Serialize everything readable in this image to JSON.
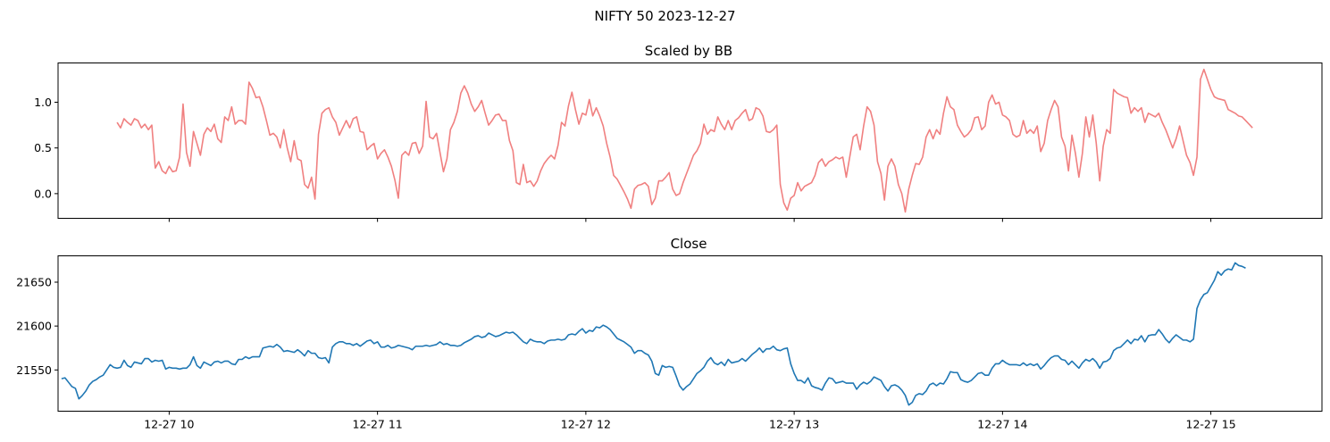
{
  "figure": {
    "title": "NIFTY 50 2023-12-27"
  },
  "chart_data": [
    {
      "type": "line",
      "title": "Scaled by BB",
      "xlabel": "",
      "ylabel": "",
      "color": "#f08080",
      "xlim": [
        "09:28",
        "15:32"
      ],
      "ylim": [
        -0.27,
        1.43
      ],
      "yticks": [
        0.0,
        0.5,
        1.0
      ],
      "ytick_labels": [
        "0.0",
        "0.5",
        "1.0"
      ],
      "xticks": [
        "10:00",
        "11:00",
        "12:00",
        "13:00",
        "14:00",
        "15:00"
      ],
      "xtick_labels_shown": false,
      "grid": false,
      "series": [
        {
          "x_start": "09:45",
          "x_step_minutes": 1,
          "values": [
            0.78,
            0.72,
            0.82,
            0.78,
            0.75,
            0.82,
            0.8,
            0.72,
            0.76,
            0.7,
            0.75,
            0.28,
            0.35,
            0.25,
            0.22,
            0.3,
            0.24,
            0.25,
            0.4,
            0.98,
            0.45,
            0.3,
            0.68,
            0.55,
            0.42,
            0.65,
            0.72,
            0.68,
            0.76,
            0.6,
            0.56,
            0.84,
            0.8,
            0.95,
            0.76,
            0.8,
            0.8,
            0.76,
            1.22,
            1.15,
            1.05,
            1.06,
            0.95,
            0.8,
            0.64,
            0.66,
            0.62,
            0.5,
            0.7,
            0.5,
            0.35,
            0.58,
            0.38,
            0.36,
            0.1,
            0.06,
            0.18,
            -0.06,
            0.65,
            0.88,
            0.92,
            0.94,
            0.84,
            0.78,
            0.64,
            0.72,
            0.8,
            0.72,
            0.82,
            0.84,
            0.68,
            0.67,
            0.48,
            0.52,
            0.55,
            0.38,
            0.44,
            0.48,
            0.4,
            0.3,
            0.15,
            -0.05,
            0.42,
            0.46,
            0.42,
            0.55,
            0.56,
            0.44,
            0.52,
            1.01,
            0.62,
            0.6,
            0.66,
            0.45,
            0.24,
            0.38,
            0.7,
            0.78,
            0.9,
            1.1,
            1.18,
            1.1,
            0.98,
            0.9,
            0.95,
            1.02,
            0.88,
            0.75,
            0.8,
            0.86,
            0.87,
            0.8,
            0.8,
            0.58,
            0.47,
            0.12,
            0.1,
            0.32,
            0.12,
            0.14,
            0.08,
            0.14,
            0.25,
            0.33,
            0.38,
            0.42,
            0.38,
            0.53,
            0.78,
            0.74,
            0.96,
            1.11,
            0.92,
            0.76,
            0.88,
            0.86,
            1.03,
            0.85,
            0.94,
            0.85,
            0.74,
            0.55,
            0.4,
            0.2,
            0.16,
            0.09,
            0.02,
            -0.06,
            -0.16,
            0.05,
            0.09,
            0.1,
            0.12,
            0.08,
            -0.12,
            -0.05,
            0.14,
            0.14,
            0.18,
            0.23,
            0.05,
            -0.02,
            0.0,
            0.12,
            0.22,
            0.32,
            0.42,
            0.47,
            0.55,
            0.76,
            0.65,
            0.7,
            0.68,
            0.84,
            0.76,
            0.7,
            0.8,
            0.7,
            0.8,
            0.83,
            0.88,
            0.92,
            0.8,
            0.82,
            0.94,
            0.92,
            0.85,
            0.68,
            0.67,
            0.7,
            0.75,
            0.1,
            -0.1,
            -0.18,
            -0.05,
            -0.02,
            0.12,
            0.03,
            0.08,
            0.1,
            0.12,
            0.2,
            0.34,
            0.38,
            0.3,
            0.35,
            0.37,
            0.4,
            0.38,
            0.4,
            0.18,
            0.4,
            0.62,
            0.65,
            0.48,
            0.74,
            0.95,
            0.9,
            0.75,
            0.35,
            0.22,
            -0.07,
            0.3,
            0.38,
            0.3,
            0.1,
            0.0,
            -0.2,
            0.05,
            0.2,
            0.33,
            0.32,
            0.4,
            0.62,
            0.7,
            0.6,
            0.7,
            0.65,
            0.88,
            1.06,
            0.95,
            0.92,
            0.75,
            0.68,
            0.62,
            0.65,
            0.7,
            0.83,
            0.84,
            0.7,
            0.74,
            1.0,
            1.08,
            0.98,
            1.0,
            0.86,
            0.84,
            0.8,
            0.65,
            0.62,
            0.64,
            0.8,
            0.66,
            0.7,
            0.66,
            0.74,
            0.46,
            0.55,
            0.8,
            0.92,
            1.02,
            0.95,
            0.62,
            0.52,
            0.25,
            0.64,
            0.44,
            0.18,
            0.44,
            0.84,
            0.62,
            0.86,
            0.55,
            0.14,
            0.52,
            0.7,
            0.66,
            1.14,
            1.1,
            1.08,
            1.06,
            1.05,
            0.88,
            0.94,
            0.9,
            0.94,
            0.78,
            0.88,
            0.86,
            0.84,
            0.88,
            0.78,
            0.7,
            0.6,
            0.5,
            0.6,
            0.74,
            0.58,
            0.42,
            0.34,
            0.2,
            0.4,
            1.25,
            1.36,
            1.25,
            1.14,
            1.06,
            1.04,
            1.03,
            1.02,
            0.92,
            0.9,
            0.88,
            0.85,
            0.84,
            0.8,
            0.76,
            0.72
          ]
        }
      ]
    },
    {
      "type": "line",
      "title": "Close",
      "xlabel": "",
      "ylabel": "",
      "color": "#1f77b4",
      "xlim": [
        "09:28",
        "15:32"
      ],
      "ylim": [
        21503,
        21680
      ],
      "yticks": [
        21550,
        21600,
        21650
      ],
      "ytick_labels": [
        "21550",
        "21600",
        "21650"
      ],
      "xticks": [
        "10:00",
        "11:00",
        "12:00",
        "13:00",
        "14:00",
        "15:00"
      ],
      "xtick_labels": [
        "12-27 10",
        "12-27 11",
        "12-27 12",
        "12-27 13",
        "12-27 14",
        "12-27 15"
      ],
      "grid": false,
      "series": [
        {
          "x_start": "09:29",
          "x_step_minutes": 1,
          "values": [
            21540,
            21541,
            21536,
            21531,
            21529,
            21517,
            21521,
            21526,
            21533,
            21537,
            21539,
            21542,
            21544,
            21550,
            21556,
            21553,
            21552,
            21553,
            21561,
            21555,
            21553,
            21559,
            21558,
            21557,
            21563,
            21563,
            21559,
            21561,
            21560,
            21561,
            21551,
            21553,
            21552,
            21552,
            21551,
            21552,
            21552,
            21556,
            21565,
            21555,
            21552,
            21559,
            21557,
            21555,
            21559,
            21560,
            21558,
            21560,
            21560,
            21557,
            21556,
            21562,
            21562,
            21565,
            21563,
            21565,
            21565,
            21565,
            21575,
            21576,
            21577,
            21576,
            21579,
            21576,
            21571,
            21572,
            21571,
            21570,
            21573,
            21570,
            21566,
            21572,
            21569,
            21569,
            21564,
            21563,
            21564,
            21558,
            21576,
            21580,
            21582,
            21582,
            21580,
            21580,
            21578,
            21580,
            21577,
            21580,
            21583,
            21584,
            21580,
            21582,
            21576,
            21576,
            21578,
            21575,
            21576,
            21578,
            21577,
            21576,
            21575,
            21573,
            21577,
            21577,
            21577,
            21578,
            21577,
            21578,
            21579,
            21582,
            21579,
            21580,
            21578,
            21578,
            21577,
            21578,
            21581,
            21583,
            21585,
            21588,
            21589,
            21587,
            21588,
            21592,
            21590,
            21588,
            21589,
            21591,
            21593,
            21592,
            21593,
            21590,
            21586,
            21582,
            21580,
            21585,
            21583,
            21582,
            21582,
            21580,
            21583,
            21584,
            21584,
            21585,
            21584,
            21585,
            21590,
            21591,
            21590,
            21594,
            21597,
            21592,
            21595,
            21594,
            21599,
            21598,
            21601,
            21599,
            21596,
            21591,
            21586,
            21584,
            21582,
            21579,
            21576,
            21569,
            21572,
            21572,
            21569,
            21567,
            21560,
            21546,
            21544,
            21555,
            21553,
            21554,
            21553,
            21543,
            21532,
            21527,
            21531,
            21534,
            21540,
            21546,
            21549,
            21553,
            21560,
            21564,
            21558,
            21556,
            21559,
            21555,
            21562,
            21558,
            21559,
            21560,
            21563,
            21560,
            21564,
            21568,
            21571,
            21575,
            21570,
            21574,
            21574,
            21577,
            21573,
            21572,
            21574,
            21575,
            21557,
            21546,
            21538,
            21538,
            21535,
            21541,
            21532,
            21530,
            21529,
            21527,
            21535,
            21541,
            21540,
            21535,
            21536,
            21537,
            21535,
            21535,
            21535,
            21528,
            21533,
            21536,
            21534,
            21537,
            21542,
            21540,
            21538,
            21531,
            21526,
            21532,
            21533,
            21531,
            21527,
            21521,
            21510,
            21513,
            21521,
            21523,
            21522,
            21526,
            21533,
            21535,
            21532,
            21535,
            21534,
            21540,
            21548,
            21547,
            21547,
            21539,
            21537,
            21536,
            21538,
            21542,
            21546,
            21547,
            21544,
            21544,
            21552,
            21557,
            21557,
            21561,
            21558,
            21556,
            21556,
            21556,
            21555,
            21558,
            21555,
            21557,
            21555,
            21557,
            21551,
            21555,
            21560,
            21564,
            21566,
            21566,
            21562,
            21561,
            21556,
            21560,
            21556,
            21552,
            21558,
            21562,
            21560,
            21563,
            21559,
            21552,
            21559,
            21560,
            21563,
            21572,
            21575,
            21576,
            21580,
            21584,
            21580,
            21585,
            21584,
            21589,
            21582,
            21589,
            21590,
            21590,
            21596,
            21591,
            21585,
            21581,
            21586,
            21590,
            21587,
            21584,
            21584,
            21582,
            21585,
            21620,
            21630,
            21636,
            21638,
            21645,
            21652,
            21662,
            21658,
            21663,
            21665,
            21664,
            21672,
            21669,
            21668,
            21666
          ]
        }
      ]
    }
  ]
}
